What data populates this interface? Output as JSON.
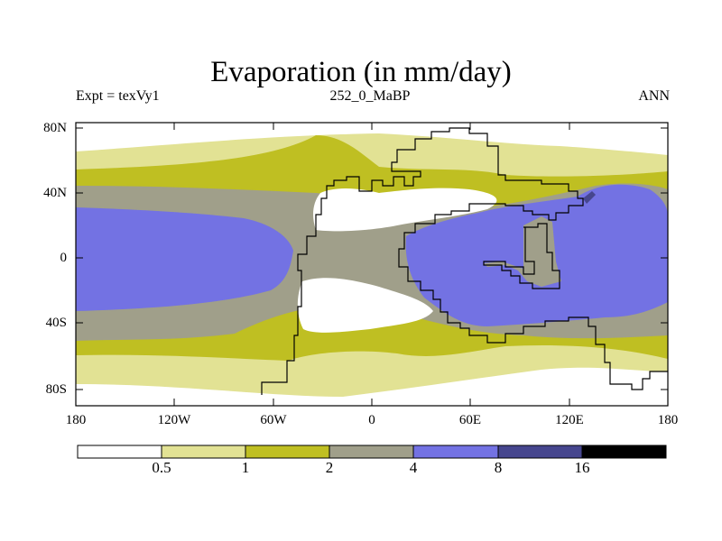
{
  "title": "Evaporation (in mm/day)",
  "subtitle_left": "Expt = texVy1",
  "subtitle_center": "252_0_MaBP",
  "subtitle_right": "ANN",
  "lat_labels": [
    "80N",
    "40N",
    "0",
    "40S",
    "80S"
  ],
  "lon_labels": [
    "180",
    "120W",
    "60W",
    "0",
    "60E",
    "120E",
    "180"
  ],
  "colorbar_labels": [
    "0.5",
    "1",
    "2",
    "4",
    "8",
    "16"
  ],
  "colors": {
    "lt05": "#ffffff",
    "c05_1": "#e2e294",
    "c1_2": "#bfbf22",
    "c2_4": "#a09f8a",
    "c4_8": "#7372e3",
    "c8_16": "#46468e",
    "gt16": "#000000"
  }
}
